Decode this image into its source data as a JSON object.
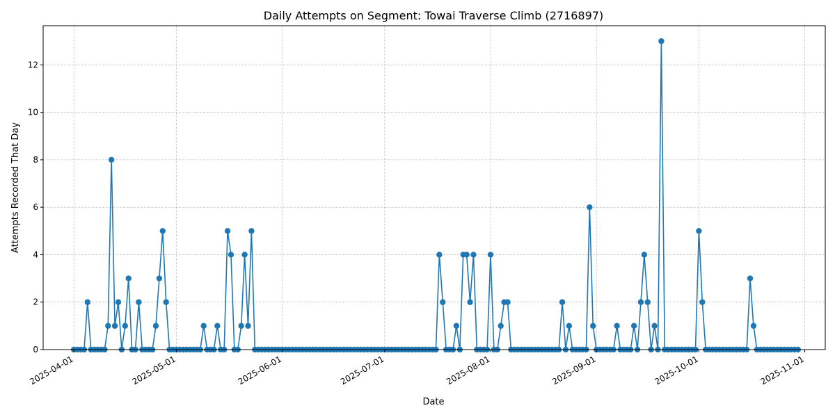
{
  "chart_data": {
    "type": "line",
    "title": "Daily Attempts on Segment: Towai Traverse Climb (2716897)",
    "xlabel": "Date",
    "ylabel": "Attempts Recorded That Day",
    "start_date": "2025-04-01",
    "end_date": "2025-10-30",
    "xlim": [
      "2025-03-23",
      "2025-11-07"
    ],
    "ylim": [
      0,
      13.65
    ],
    "xticks": [
      "2025-04-01",
      "2025-05-01",
      "2025-06-01",
      "2025-07-01",
      "2025-08-01",
      "2025-09-01",
      "2025-10-01",
      "2025-11-01"
    ],
    "yticks": [
      0,
      2,
      4,
      6,
      8,
      10,
      12
    ],
    "grid": true,
    "marker": "circle",
    "color": "#1f77b4",
    "series": [
      {
        "name": "",
        "values": [
          0,
          0,
          0,
          0,
          2,
          0,
          0,
          0,
          0,
          0,
          1,
          8,
          1,
          2,
          0,
          1,
          3,
          0,
          0,
          2,
          0,
          0,
          0,
          0,
          1,
          3,
          5,
          2,
          0,
          0,
          0,
          0,
          0,
          0,
          0,
          0,
          0,
          0,
          1,
          0,
          0,
          0,
          1,
          0,
          0,
          5,
          4,
          0,
          0,
          1,
          4,
          1,
          5,
          0,
          0,
          0,
          0,
          0,
          0,
          0,
          0,
          0,
          0,
          0,
          0,
          0,
          0,
          0,
          0,
          0,
          0,
          0,
          0,
          0,
          0,
          0,
          0,
          0,
          0,
          0,
          0,
          0,
          0,
          0,
          0,
          0,
          0,
          0,
          0,
          0,
          0,
          0,
          0,
          0,
          0,
          0,
          0,
          0,
          0,
          0,
          0,
          0,
          0,
          0,
          0,
          0,
          0,
          4,
          2,
          0,
          0,
          0,
          1,
          0,
          4,
          4,
          2,
          4,
          0,
          0,
          0,
          0,
          4,
          0,
          0,
          1,
          2,
          2,
          0,
          0,
          0,
          0,
          0,
          0,
          0,
          0,
          0,
          0,
          0,
          0,
          0,
          0,
          0,
          2,
          0,
          1,
          0,
          0,
          0,
          0,
          0,
          6,
          1,
          0,
          0,
          0,
          0,
          0,
          0,
          1,
          0,
          0,
          0,
          0,
          1,
          0,
          2,
          4,
          2,
          0,
          1,
          0,
          13,
          0,
          0,
          0,
          0,
          0,
          0,
          0,
          0,
          0,
          0,
          5,
          2,
          0,
          0,
          0,
          0,
          0,
          0,
          0,
          0,
          0,
          0,
          0,
          0,
          0,
          3,
          1,
          0,
          0,
          0,
          0,
          0,
          0,
          0,
          0,
          0,
          0,
          0,
          0,
          0
        ]
      }
    ]
  }
}
